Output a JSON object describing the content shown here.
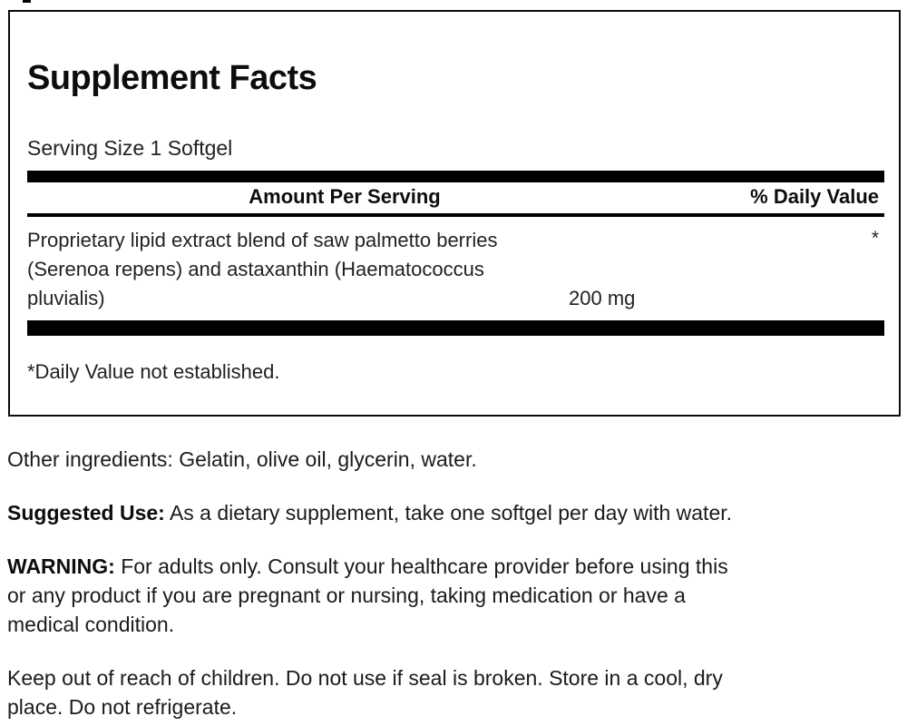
{
  "panel": {
    "title": "Supplement Facts",
    "serving_size": "Serving Size 1 Softgel",
    "columns": {
      "amount_header": "Amount Per Serving",
      "daily_value_header": "% Daily Value"
    },
    "ingredient": {
      "line1": "Proprietary lipid extract blend of saw palmetto berries",
      "line2": "(Serenoa repens) and astaxanthin (Haematococcus",
      "line3": "pluvialis)",
      "amount": "200 mg",
      "daily_value": "*"
    },
    "footnote": "*Daily Value not established."
  },
  "other_ingredients": {
    "text": "Other ingredients: Gelatin, olive oil, glycerin, water."
  },
  "suggested_use": {
    "label": "Suggested Use:",
    "text": " As a dietary supplement, take one softgel per day with water."
  },
  "warning": {
    "label": "WARNING:",
    "line1_rest": " For adults only. Consult your healthcare provider before using this",
    "line2": "or any product if you are pregnant or nursing, taking medication or have a",
    "line3": "medical condition."
  },
  "storage": {
    "line1": "Keep out of reach of children. Do not use if seal is broken. Store in a cool, dry",
    "line2": "place. Do not refrigerate."
  },
  "colors": {
    "background": "#ffffff",
    "text": "#1b1b1b",
    "bar": "#000000",
    "border": "#0a0a0a"
  }
}
